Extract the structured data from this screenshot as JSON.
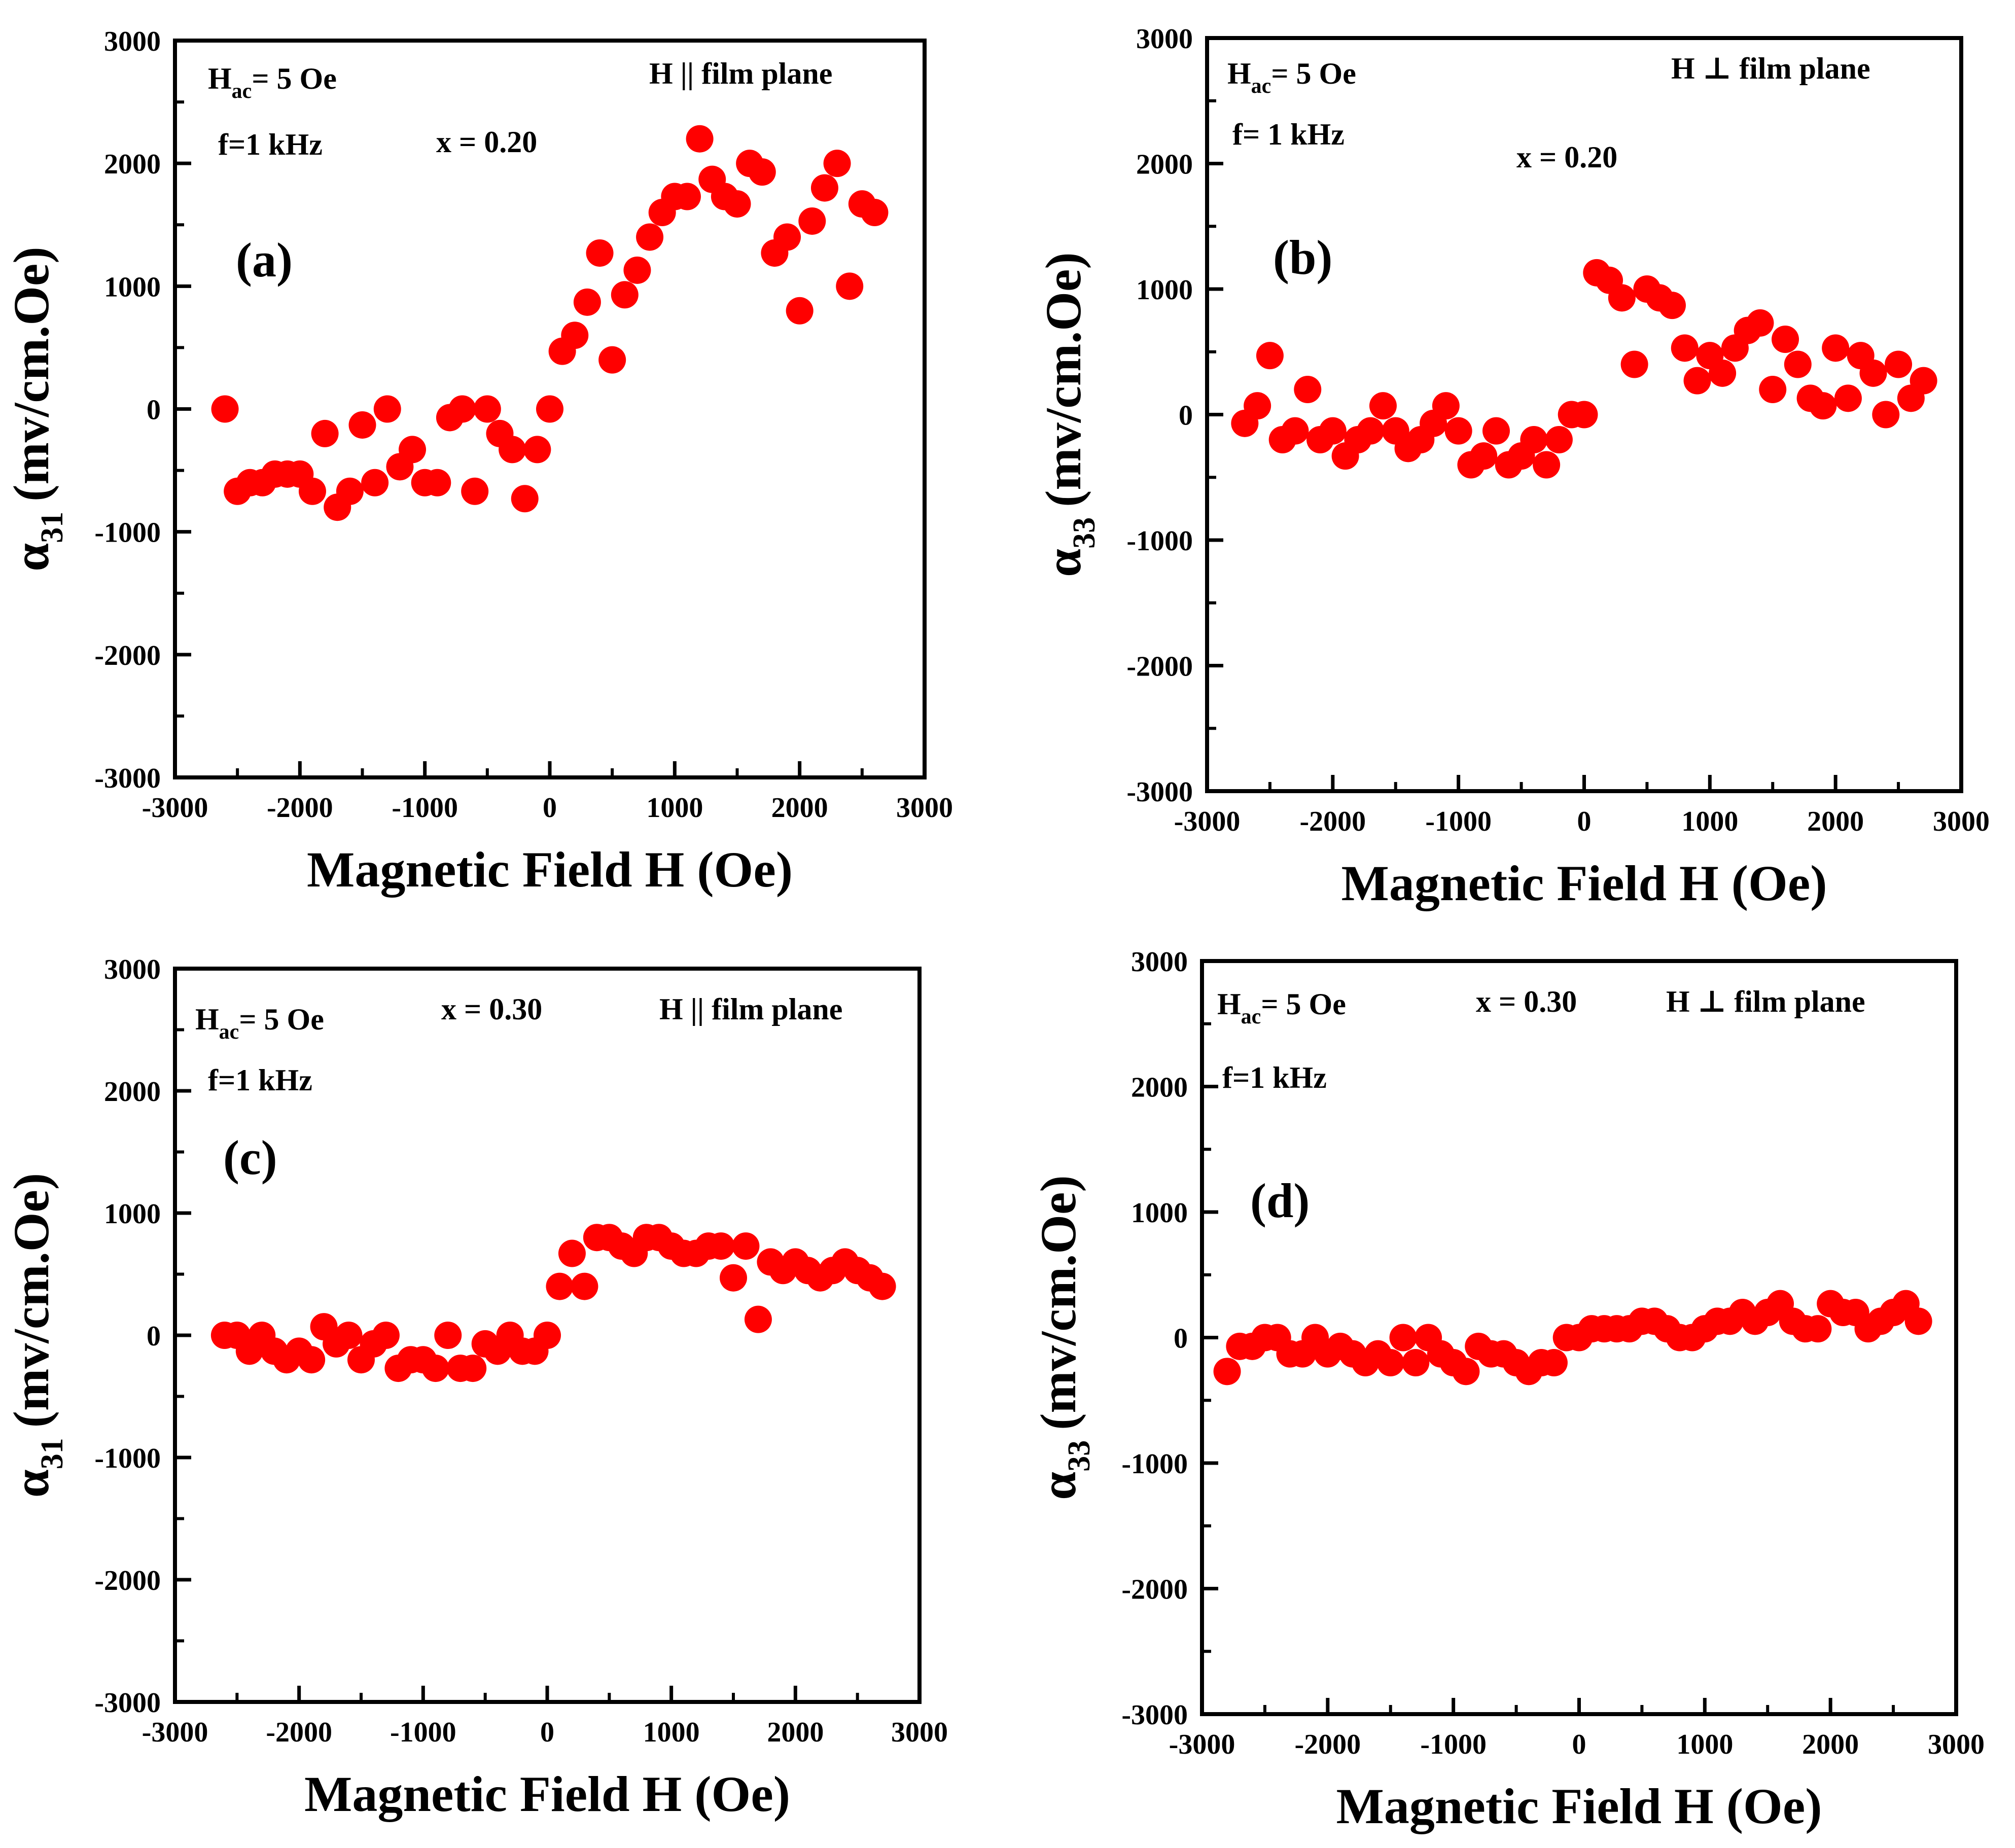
{
  "chart_data": [
    {
      "type": "scatter",
      "panel": "(a)",
      "marker_color": "#ff0000",
      "xlabel": "Magnetic Field H (Oe)",
      "ylabel_symbol": "α",
      "ylabel_sub": "31",
      "ylabel_units": "(mv/cm.Oe)",
      "xlim": [
        -3000,
        3000
      ],
      "ylim": [
        -3000,
        3000
      ],
      "xticks": [
        -3000,
        -2000,
        -1000,
        0,
        1000,
        2000,
        3000
      ],
      "yticks": [
        -3000,
        -2000,
        -1000,
        0,
        1000,
        2000,
        3000
      ],
      "annotations": {
        "hac_main": "H",
        "hac_sub": "ac",
        "hac_rest": "= 5 Oe",
        "freq": "f=1 kHz",
        "x_value": "x = 0.20",
        "orientation": "H || film plane"
      },
      "series": [
        {
          "name": "x = 0.20, H || film plane",
          "x": [
            -2600,
            -2500,
            -2400,
            -2300,
            -2200,
            -2100,
            -2000,
            -1900,
            -1800,
            -1700,
            -1600,
            -1500,
            -1400,
            -1300,
            -1200,
            -1100,
            -1000,
            -900,
            -800,
            -700,
            -600,
            -500,
            -400,
            -300,
            -200,
            -100,
            0,
            100,
            200,
            300,
            400,
            500,
            600,
            700,
            800,
            900,
            1000,
            1100,
            1200,
            1300,
            1400,
            1500,
            1600,
            1700,
            1800,
            1900,
            2000,
            2100,
            2200,
            2300,
            2400,
            2500,
            2600
          ],
          "y": [
            0,
            -670,
            -600,
            -600,
            -530,
            -530,
            -530,
            -670,
            -200,
            -800,
            -670,
            -130,
            -600,
            0,
            -470,
            -330,
            -600,
            -600,
            -70,
            0,
            -670,
            0,
            -200,
            -330,
            -730,
            -330,
            0,
            470,
            600,
            870,
            1270,
            400,
            930,
            1130,
            1400,
            1600,
            1730,
            1730,
            2200,
            1870,
            1730,
            1670,
            2000,
            1930,
            1270,
            1400,
            800,
            1530,
            1800,
            2000,
            1000,
            1670,
            1600
          ]
        }
      ]
    },
    {
      "type": "scatter",
      "panel": "(b)",
      "marker_color": "#ff0000",
      "xlabel": "Magnetic Field H (Oe)",
      "ylabel_symbol": "α",
      "ylabel_sub": "33",
      "ylabel_units": "(mv/cm.Oe)",
      "xlim": [
        -3000,
        3000
      ],
      "ylim": [
        -3000,
        3000
      ],
      "xticks": [
        -3000,
        -2000,
        -1000,
        0,
        1000,
        2000,
        3000
      ],
      "yticks": [
        -3000,
        -2000,
        -1000,
        0,
        1000,
        2000,
        3000
      ],
      "annotations": {
        "hac_main": "H",
        "hac_sub": "ac",
        "hac_rest": "= 5 Oe",
        "freq": "f= 1 kHz",
        "x_value": "x = 0.20",
        "orientation": "H ⊥ film plane"
      },
      "series": [
        {
          "name": "x = 0.20, H ⊥ film plane",
          "x": [
            -2700,
            -2600,
            -2500,
            -2400,
            -2300,
            -2200,
            -2100,
            -2000,
            -1900,
            -1800,
            -1700,
            -1600,
            -1500,
            -1400,
            -1300,
            -1200,
            -1100,
            -1000,
            -900,
            -800,
            -700,
            -600,
            -500,
            -400,
            -300,
            -200,
            -100,
            0,
            100,
            200,
            300,
            400,
            500,
            600,
            700,
            800,
            900,
            1000,
            1100,
            1200,
            1300,
            1400,
            1500,
            1600,
            1700,
            1800,
            1900,
            2000,
            2100,
            2200,
            2300,
            2400,
            2500,
            2600,
            2700
          ],
          "y": [
            -70,
            70,
            470,
            -200,
            -130,
            200,
            -200,
            -130,
            -330,
            -200,
            -130,
            70,
            -130,
            -270,
            -200,
            -70,
            70,
            -130,
            -400,
            -330,
            -130,
            -400,
            -330,
            -200,
            -400,
            -200,
            0,
            0,
            1130,
            1070,
            930,
            400,
            1000,
            930,
            870,
            530,
            270,
            470,
            330,
            530,
            670,
            730,
            200,
            600,
            400,
            130,
            70,
            530,
            130,
            470,
            330,
            0,
            400,
            130,
            270
          ]
        }
      ]
    },
    {
      "type": "scatter",
      "panel": "(c)",
      "marker_color": "#ff0000",
      "xlabel": "Magnetic Field H (Oe)",
      "ylabel_symbol": "α",
      "ylabel_sub": "31",
      "ylabel_units": "(mv/cm.Oe)",
      "xlim": [
        -3000,
        3000
      ],
      "ylim": [
        -3000,
        3000
      ],
      "xticks": [
        -3000,
        -2000,
        -1000,
        0,
        1000,
        2000,
        3000
      ],
      "yticks": [
        -3000,
        -2000,
        -1000,
        0,
        1000,
        2000,
        3000
      ],
      "annotations": {
        "hac_main": "H",
        "hac_sub": "ac",
        "hac_rest": "= 5 Oe",
        "freq": "f=1 kHz",
        "x_value": "x = 0.30",
        "orientation": "H || film plane"
      },
      "series": [
        {
          "name": "x = 0.30, H || film plane",
          "x": [
            -2600,
            -2500,
            -2400,
            -2300,
            -2200,
            -2100,
            -2000,
            -1900,
            -1800,
            -1700,
            -1600,
            -1500,
            -1400,
            -1300,
            -1200,
            -1100,
            -1000,
            -900,
            -800,
            -700,
            -600,
            -500,
            -400,
            -300,
            -200,
            -100,
            0,
            100,
            200,
            300,
            400,
            500,
            600,
            700,
            800,
            900,
            1000,
            1100,
            1200,
            1300,
            1400,
            1500,
            1600,
            1700,
            1800,
            1900,
            2000,
            2100,
            2200,
            2300,
            2400,
            2500,
            2600,
            2700
          ],
          "y": [
            0,
            0,
            -130,
            0,
            -130,
            -200,
            -130,
            -200,
            70,
            -70,
            0,
            -200,
            -70,
            0,
            -270,
            -200,
            -200,
            -270,
            0,
            -270,
            -270,
            -70,
            -130,
            0,
            -130,
            -130,
            0,
            400,
            670,
            400,
            800,
            800,
            730,
            670,
            800,
            800,
            730,
            670,
            670,
            730,
            730,
            470,
            730,
            130,
            600,
            530,
            600,
            530,
            470,
            530,
            600,
            530,
            470,
            400
          ]
        }
      ]
    },
    {
      "type": "scatter",
      "panel": "(d)",
      "marker_color": "#ff0000",
      "xlabel": "Magnetic Field H (Oe)",
      "ylabel_symbol": "α",
      "ylabel_sub": "33",
      "ylabel_units": "(mv/cm.Oe)",
      "xlim": [
        -3000,
        3000
      ],
      "ylim": [
        -3000,
        3000
      ],
      "xticks": [
        -3000,
        -2000,
        -1000,
        0,
        1000,
        2000,
        3000
      ],
      "yticks": [
        -3000,
        -2000,
        -1000,
        0,
        1000,
        2000,
        3000
      ],
      "annotations": {
        "hac_main": "H",
        "hac_sub": "ac",
        "hac_rest": "= 5 Oe",
        "freq": "f=1 kHz",
        "x_value": "x = 0.30",
        "orientation": "H ⊥ film plane"
      },
      "series": [
        {
          "name": "x = 0.30, H ⊥ film plane",
          "x": [
            -2800,
            -2700,
            -2600,
            -2500,
            -2400,
            -2300,
            -2200,
            -2100,
            -2000,
            -1900,
            -1800,
            -1700,
            -1600,
            -1500,
            -1400,
            -1300,
            -1200,
            -1100,
            -1000,
            -900,
            -800,
            -700,
            -600,
            -500,
            -400,
            -300,
            -200,
            -100,
            0,
            100,
            200,
            300,
            400,
            500,
            600,
            700,
            800,
            900,
            1000,
            1100,
            1200,
            1300,
            1400,
            1500,
            1600,
            1700,
            1800,
            1900,
            2000,
            2100,
            2200,
            2300,
            2400,
            2500,
            2600,
            2700
          ],
          "y": [
            -270,
            -70,
            -70,
            0,
            0,
            -130,
            -130,
            0,
            -130,
            -70,
            -130,
            -200,
            -130,
            -200,
            0,
            -200,
            0,
            -130,
            -200,
            -270,
            -70,
            -130,
            -130,
            -200,
            -270,
            -200,
            -200,
            0,
            0,
            70,
            70,
            70,
            70,
            130,
            130,
            70,
            0,
            0,
            70,
            130,
            130,
            200,
            130,
            200,
            270,
            130,
            70,
            70,
            270,
            200,
            200,
            70,
            130,
            200,
            270,
            130
          ]
        }
      ]
    }
  ]
}
